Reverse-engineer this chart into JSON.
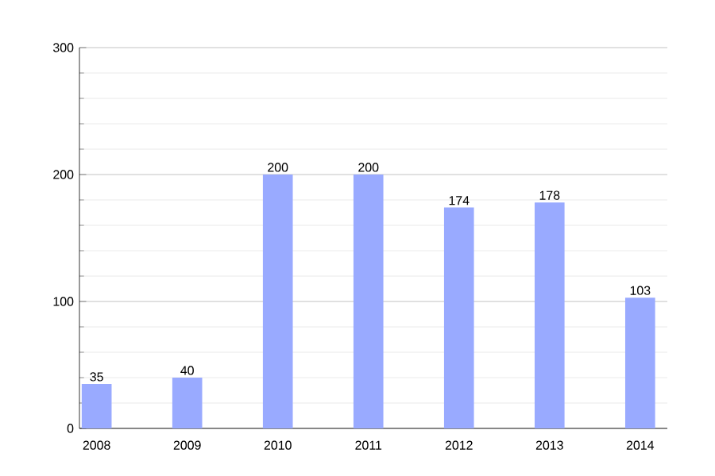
{
  "chart_data": {
    "type": "bar",
    "categories": [
      "2008",
      "2009",
      "2010",
      "2011",
      "2012",
      "2013",
      "2014"
    ],
    "values": [
      35,
      40,
      200,
      200,
      174,
      178,
      103
    ],
    "color": "#99aaff",
    "ylim": [
      0,
      300
    ],
    "yticks": [
      0,
      100,
      200,
      300
    ],
    "grid": true,
    "data_labels": true
  }
}
